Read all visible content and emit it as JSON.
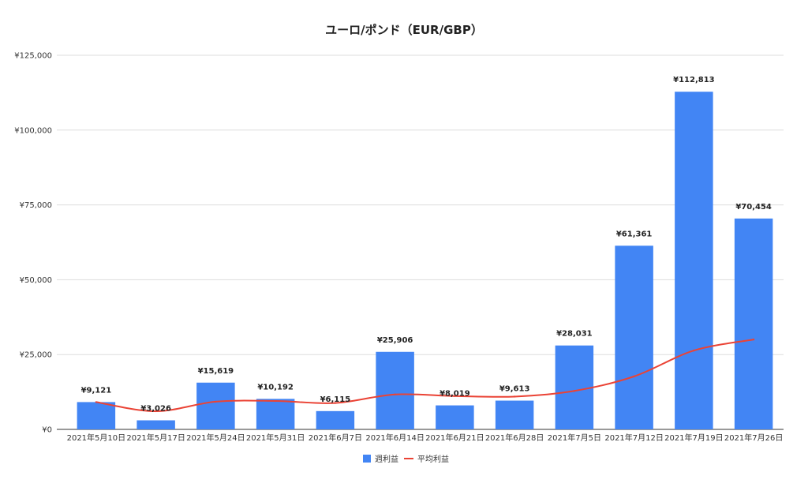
{
  "chart_data": {
    "type": "bar",
    "title": "ユーロ/ポンド（EUR/GBP）",
    "categories": [
      "2021年5月10日",
      "2021年5月17日",
      "2021年5月24日",
      "2021年5月31日",
      "2021年6月7日",
      "2021年6月14日",
      "2021年6月21日",
      "2021年6月28日",
      "2021年7月5日",
      "2021年7月12日",
      "2021年7月19日",
      "2021年7月26日"
    ],
    "series": [
      {
        "name": "週利益",
        "type": "bar",
        "color": "#4285f4",
        "values": [
          9121,
          3026,
          15619,
          10192,
          6115,
          25906,
          8019,
          9613,
          28031,
          61361,
          112813,
          70454
        ],
        "labels": [
          "¥9,121",
          "¥3,026",
          "¥15,619",
          "¥10,192",
          "¥6,115",
          "¥25,906",
          "¥8,019",
          "¥9,613",
          "¥28,031",
          "¥61,361",
          "¥112,813",
          "¥70,454"
        ]
      },
      {
        "name": "平均利益",
        "type": "line",
        "color": "#ea4335",
        "values": [
          9121,
          6074,
          9255,
          9490,
          8815,
          11664,
          11144,
          10953,
          12851,
          17702,
          26349,
          30023
        ]
      }
    ],
    "ylim": [
      0,
      125000
    ],
    "yticks": [
      0,
      25000,
      50000,
      75000,
      100000,
      125000
    ],
    "ytick_labels": [
      "¥0",
      "¥25,000",
      "¥50,000",
      "¥75,000",
      "¥100,000",
      "¥125,000"
    ],
    "xlabel": "",
    "ylabel": "",
    "grid": true,
    "legend": "bottom"
  }
}
